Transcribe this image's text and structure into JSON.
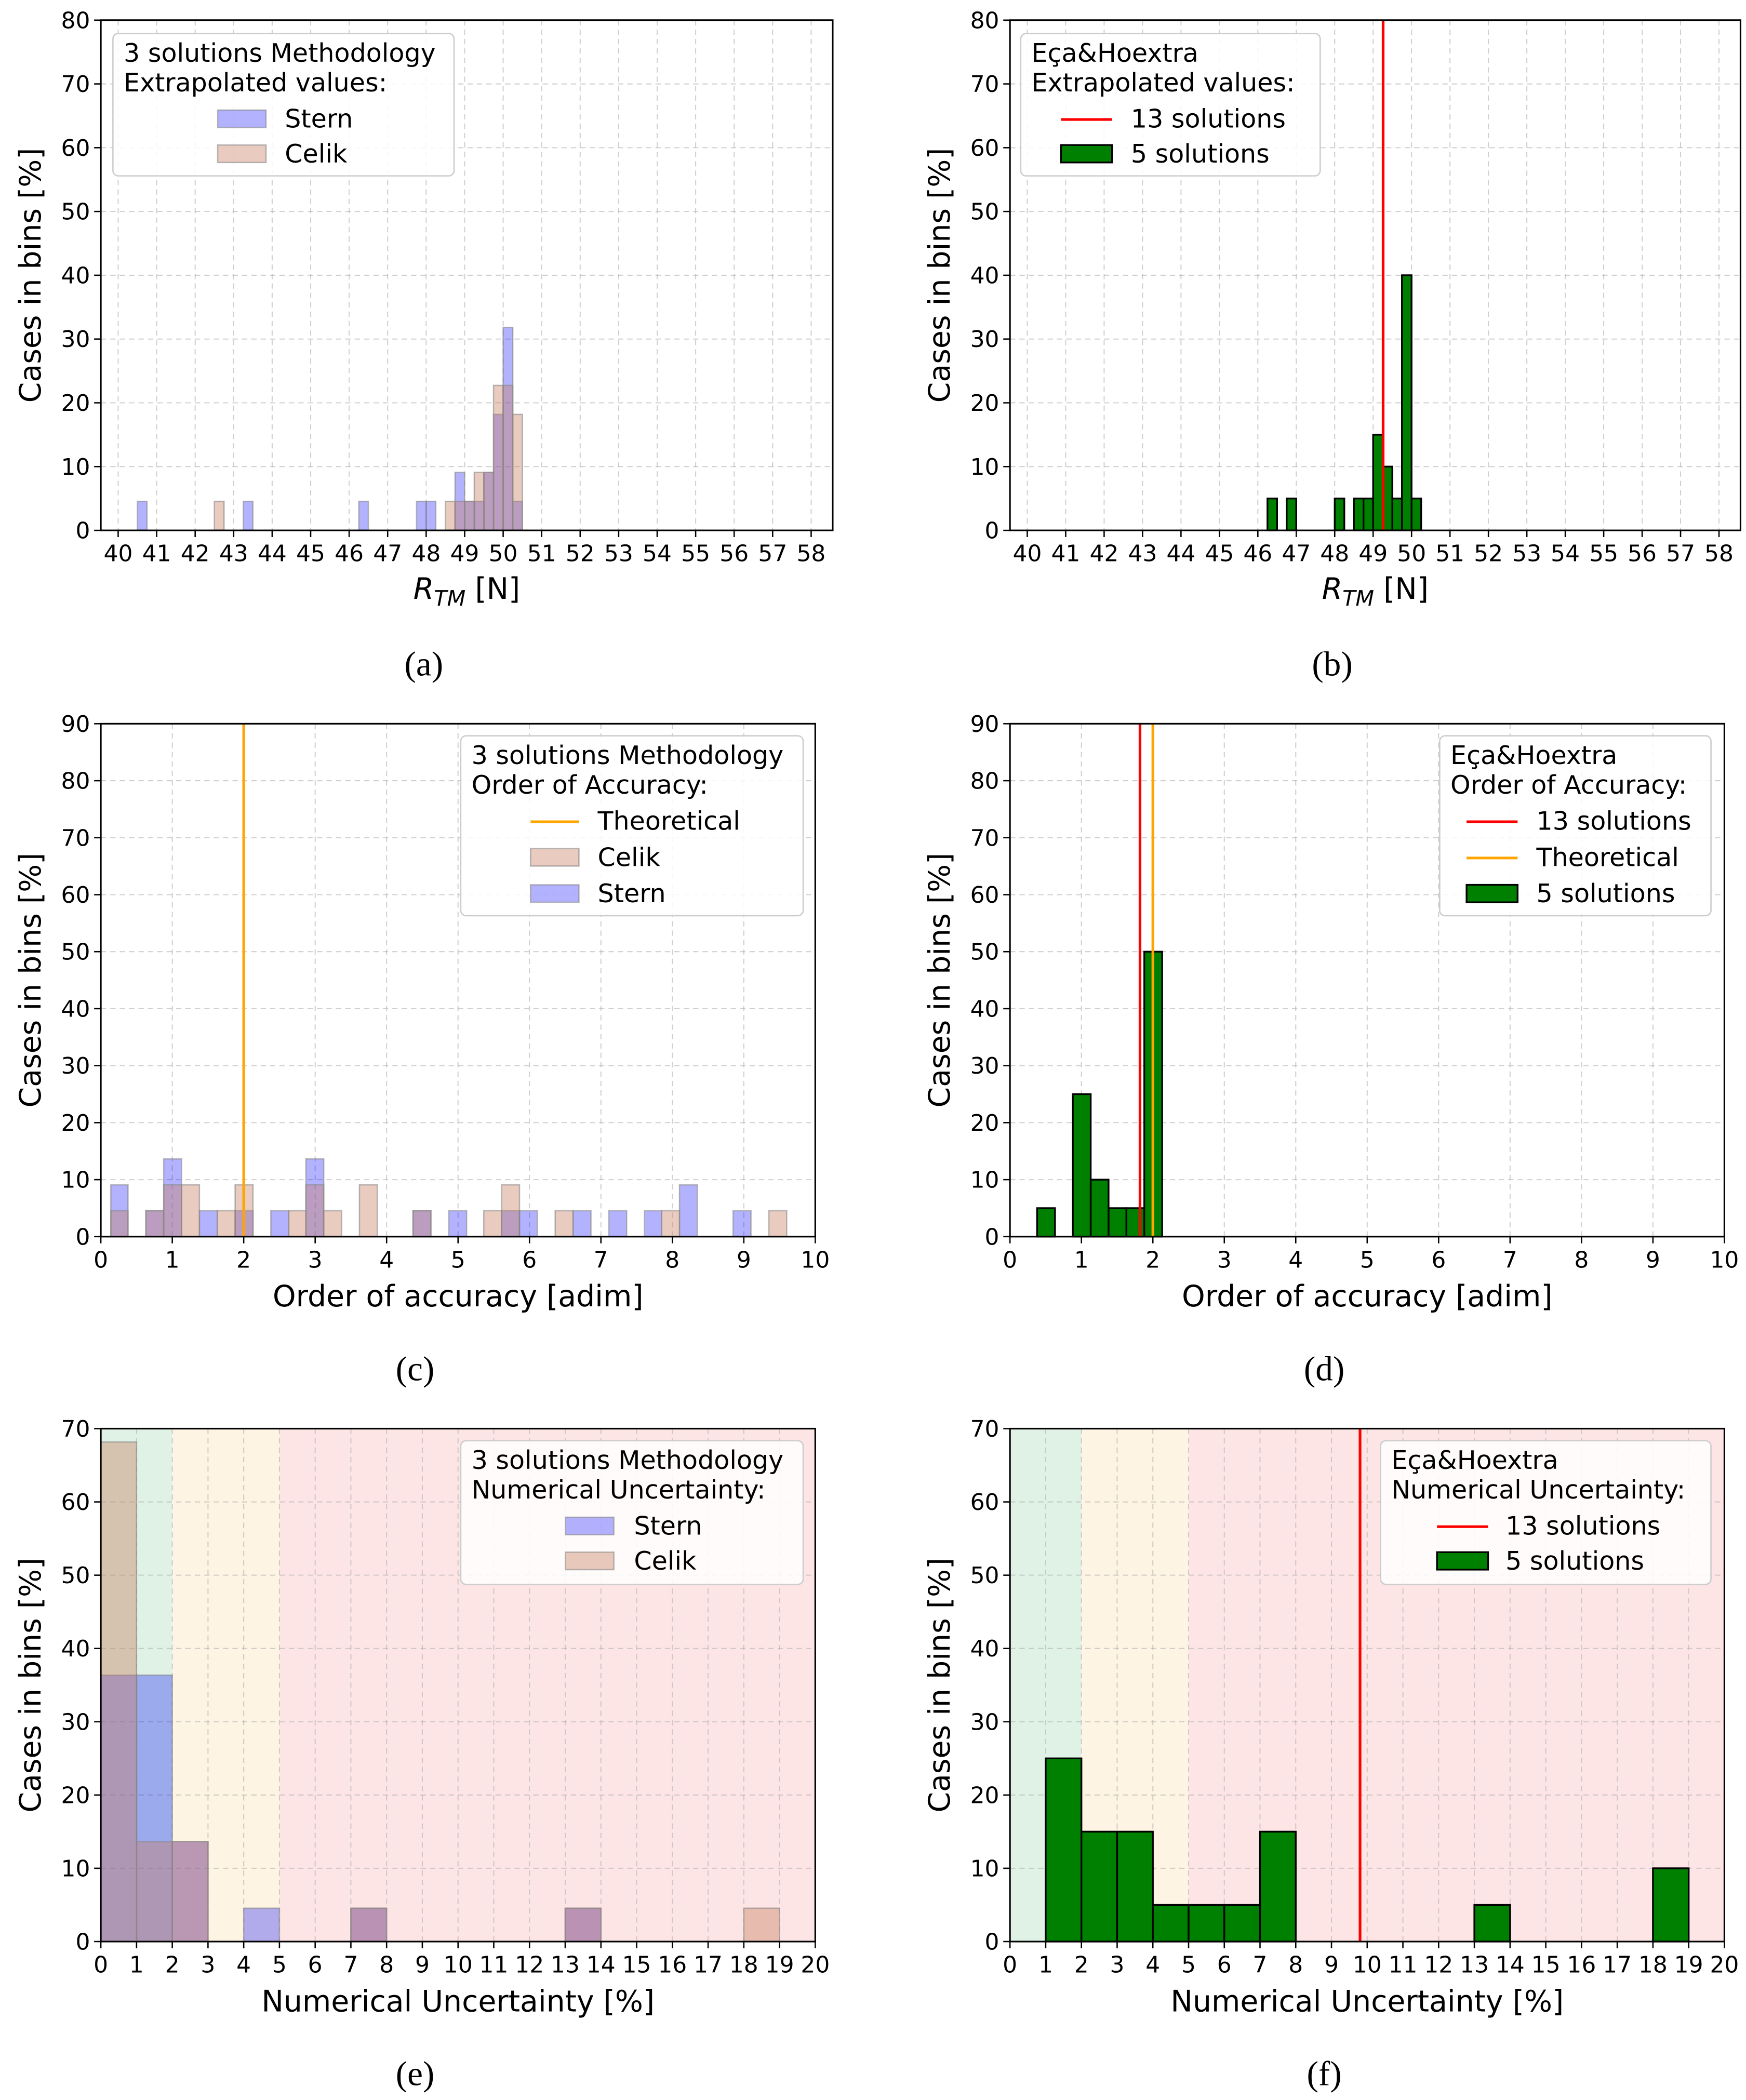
{
  "colors": {
    "stern": "#0000ff",
    "celik": "#c87e60",
    "five_solutions": "#008000",
    "thirteen_solutions": "#ff0000",
    "theoretical": "#ffa500",
    "band_green": "#dff2e5",
    "band_yellow": "#fef4e3",
    "band_red": "#fee5e5"
  },
  "chart_data": [
    {
      "id": "a",
      "type": "bar",
      "panel_label": "(a)",
      "ylabel": "Cases in bins [%]",
      "xlabel": {
        "base": "R",
        "sub": "TM",
        "unit": " [N]"
      },
      "xlim": [
        39.55,
        58.56
      ],
      "ylim": [
        0,
        80
      ],
      "xticks": [
        "40",
        "41",
        "42",
        "43",
        "44",
        "45",
        "46",
        "47",
        "48",
        "49",
        "50",
        "51",
        "52",
        "53",
        "54",
        "55",
        "56",
        "57",
        "58"
      ],
      "xtick_values": [
        40,
        41,
        42,
        43,
        44,
        45,
        46,
        47,
        48,
        49,
        50,
        51,
        52,
        53,
        54,
        55,
        56,
        57,
        58
      ],
      "yticks": [
        "0",
        "10",
        "20",
        "30",
        "40",
        "50",
        "60",
        "70",
        "80"
      ],
      "ytick_values": [
        0,
        10,
        20,
        30,
        40,
        50,
        60,
        70,
        80
      ],
      "grid": true,
      "legend": {
        "title": [
          "3 solutions Methodology",
          "Extrapolated values:"
        ],
        "placement": "top-left",
        "items": [
          {
            "label": "Stern",
            "kind": "patch",
            "color_key": "stern"
          },
          {
            "label": "Celik",
            "kind": "patch",
            "color_key": "celik"
          }
        ]
      },
      "series": [
        {
          "name": "Stern",
          "color_key": "stern",
          "bins": [
            [
              40.5,
              40.75,
              4.55
            ],
            [
              43.25,
              43.5,
              4.55
            ],
            [
              46.25,
              46.5,
              4.55
            ],
            [
              47.75,
              48.0,
              4.55
            ],
            [
              48.0,
              48.25,
              4.55
            ],
            [
              48.75,
              49.0,
              9.09
            ],
            [
              49.0,
              49.25,
              4.55
            ],
            [
              49.25,
              49.5,
              4.55
            ],
            [
              49.5,
              49.75,
              9.09
            ],
            [
              49.75,
              50.0,
              18.18
            ],
            [
              50.0,
              50.25,
              31.82
            ],
            [
              50.25,
              50.5,
              4.55
            ]
          ]
        },
        {
          "name": "Celik",
          "color_key": "celik",
          "bins": [
            [
              42.5,
              42.75,
              4.55
            ],
            [
              48.5,
              48.75,
              4.55
            ],
            [
              48.75,
              49.0,
              4.55
            ],
            [
              49.0,
              49.25,
              4.55
            ],
            [
              49.25,
              49.5,
              9.09
            ],
            [
              49.5,
              49.75,
              9.09
            ],
            [
              49.75,
              50.0,
              22.73
            ],
            [
              50.0,
              50.25,
              22.73
            ],
            [
              50.25,
              50.5,
              18.18
            ]
          ]
        }
      ],
      "vlines": []
    },
    {
      "id": "b",
      "type": "bar",
      "panel_label": "(b)",
      "ylabel": "Cases in bins [%]",
      "xlabel": {
        "base": "R",
        "sub": "TM",
        "unit": " [N]"
      },
      "xlim": [
        39.55,
        58.56
      ],
      "ylim": [
        0,
        80
      ],
      "xticks": [
        "40",
        "41",
        "42",
        "43",
        "44",
        "45",
        "46",
        "47",
        "48",
        "49",
        "50",
        "51",
        "52",
        "53",
        "54",
        "55",
        "56",
        "57",
        "58"
      ],
      "xtick_values": [
        40,
        41,
        42,
        43,
        44,
        45,
        46,
        47,
        48,
        49,
        50,
        51,
        52,
        53,
        54,
        55,
        56,
        57,
        58
      ],
      "yticks": [
        "0",
        "10",
        "20",
        "30",
        "40",
        "50",
        "60",
        "70",
        "80"
      ],
      "ytick_values": [
        0,
        10,
        20,
        30,
        40,
        50,
        60,
        70,
        80
      ],
      "grid": true,
      "legend": {
        "title": [
          "Eça&Hoextra",
          "Extrapolated values:"
        ],
        "placement": "top-left",
        "items": [
          {
            "label": "13 solutions",
            "kind": "line",
            "color_key": "thirteen_solutions"
          },
          {
            "label": "5 solutions",
            "kind": "patch",
            "color_key": "five_solutions"
          }
        ]
      },
      "series": [
        {
          "name": "5 solutions",
          "color_key": "five_solutions",
          "bins": [
            [
              46.25,
              46.5,
              5
            ],
            [
              46.75,
              47.0,
              5
            ],
            [
              48.0,
              48.25,
              5
            ],
            [
              48.5,
              48.75,
              5
            ],
            [
              48.75,
              49.0,
              5
            ],
            [
              49.0,
              49.25,
              15
            ],
            [
              49.25,
              49.5,
              10
            ],
            [
              49.5,
              49.75,
              5
            ],
            [
              49.75,
              50.0,
              40
            ],
            [
              50.0,
              50.25,
              5
            ]
          ]
        }
      ],
      "vlines": [
        {
          "name": "13 solutions",
          "x": 49.26,
          "color_key": "thirteen_solutions"
        }
      ]
    },
    {
      "id": "c",
      "type": "bar",
      "panel_label": "(c)",
      "ylabel": "Cases in bins [%]",
      "xlabel": {
        "base": "Order of accuracy [adim]"
      },
      "xlim": [
        0,
        10
      ],
      "ylim": [
        0,
        90
      ],
      "xticks": [
        "0",
        "1",
        "2",
        "3",
        "4",
        "5",
        "6",
        "7",
        "8",
        "9",
        "10"
      ],
      "xtick_values": [
        0,
        1,
        2,
        3,
        4,
        5,
        6,
        7,
        8,
        9,
        10
      ],
      "yticks": [
        "0",
        "10",
        "20",
        "30",
        "40",
        "50",
        "60",
        "70",
        "80",
        "90"
      ],
      "ytick_values": [
        0,
        10,
        20,
        30,
        40,
        50,
        60,
        70,
        80,
        90
      ],
      "grid": true,
      "legend": {
        "title": [
          "3 solutions Methodology",
          "Order of Accuracy:"
        ],
        "placement": "top-right",
        "items": [
          {
            "label": "Theoretical",
            "kind": "line",
            "color_key": "theoretical"
          },
          {
            "label": "Celik",
            "kind": "patch",
            "color_key": "celik"
          },
          {
            "label": "Stern",
            "kind": "patch",
            "color_key": "stern"
          }
        ]
      },
      "series": [
        {
          "name": "Stern",
          "color_key": "stern",
          "bins": [
            [
              0.14,
              0.38,
              9.09
            ],
            [
              0.63,
              0.88,
              4.55
            ],
            [
              0.88,
              1.13,
              13.64
            ],
            [
              1.38,
              1.63,
              4.55
            ],
            [
              1.88,
              2.13,
              4.55
            ],
            [
              2.38,
              2.63,
              4.55
            ],
            [
              2.87,
              3.12,
              13.64
            ],
            [
              4.37,
              4.62,
              4.55
            ],
            [
              4.87,
              5.12,
              4.55
            ],
            [
              5.61,
              5.86,
              4.55
            ],
            [
              5.86,
              6.11,
              4.55
            ],
            [
              6.61,
              6.86,
              4.55
            ],
            [
              7.11,
              7.36,
              4.55
            ],
            [
              7.61,
              7.85,
              4.55
            ],
            [
              8.1,
              8.35,
              9.09
            ],
            [
              8.85,
              9.1,
              4.55
            ]
          ]
        },
        {
          "name": "Celik",
          "color_key": "celik",
          "bins": [
            [
              0.14,
              0.38,
              4.55
            ],
            [
              0.63,
              0.88,
              4.55
            ],
            [
              0.88,
              1.13,
              9.09
            ],
            [
              1.13,
              1.38,
              9.09
            ],
            [
              1.63,
              1.88,
              4.55
            ],
            [
              1.88,
              2.13,
              9.09
            ],
            [
              2.63,
              2.87,
              4.55
            ],
            [
              2.87,
              3.12,
              9.09
            ],
            [
              3.12,
              3.37,
              4.55
            ],
            [
              3.62,
              3.87,
              9.09
            ],
            [
              4.37,
              4.62,
              4.55
            ],
            [
              5.36,
              5.61,
              4.55
            ],
            [
              5.61,
              5.86,
              9.09
            ],
            [
              6.36,
              6.61,
              4.55
            ],
            [
              7.85,
              8.1,
              4.55
            ],
            [
              9.35,
              9.6,
              4.55
            ]
          ]
        }
      ],
      "vlines": [
        {
          "name": "Theoretical",
          "x": 2.0,
          "color_key": "theoretical"
        }
      ]
    },
    {
      "id": "d",
      "type": "bar",
      "panel_label": "(d)",
      "ylabel": "Cases in bins [%]",
      "xlabel": {
        "base": "Order of accuracy [adim]"
      },
      "xlim": [
        0,
        10
      ],
      "ylim": [
        0,
        90
      ],
      "xticks": [
        "0",
        "1",
        "2",
        "3",
        "4",
        "5",
        "6",
        "7",
        "8",
        "9",
        "10"
      ],
      "xtick_values": [
        0,
        1,
        2,
        3,
        4,
        5,
        6,
        7,
        8,
        9,
        10
      ],
      "yticks": [
        "0",
        "10",
        "20",
        "30",
        "40",
        "50",
        "60",
        "70",
        "80",
        "90"
      ],
      "ytick_values": [
        0,
        10,
        20,
        30,
        40,
        50,
        60,
        70,
        80,
        90
      ],
      "grid": true,
      "legend": {
        "title": [
          "Eça&Hoextra",
          "Order of Accuracy:"
        ],
        "placement": "top-right",
        "items": [
          {
            "label": "13 solutions",
            "kind": "line",
            "color_key": "thirteen_solutions"
          },
          {
            "label": "Theoretical",
            "kind": "line",
            "color_key": "theoretical"
          },
          {
            "label": "5 solutions",
            "kind": "patch",
            "color_key": "five_solutions"
          }
        ]
      },
      "series": [
        {
          "name": "5 solutions",
          "color_key": "five_solutions",
          "bins": [
            [
              0.38,
              0.63,
              5
            ],
            [
              0.88,
              1.13,
              25
            ],
            [
              1.13,
              1.38,
              10
            ],
            [
              1.38,
              1.63,
              5
            ],
            [
              1.63,
              1.88,
              5
            ],
            [
              1.88,
              2.13,
              50
            ]
          ]
        }
      ],
      "vlines": [
        {
          "name": "13 solutions",
          "x": 1.82,
          "color_key": "thirteen_solutions"
        },
        {
          "name": "Theoretical",
          "x": 2.0,
          "color_key": "theoretical"
        }
      ]
    },
    {
      "id": "e",
      "type": "bar",
      "panel_label": "(e)",
      "ylabel": "Cases in bins [%]",
      "xlabel": {
        "base": "Numerical Uncertainty [%]"
      },
      "xlim": [
        0,
        20
      ],
      "ylim": [
        0,
        70
      ],
      "xticks": [
        "0",
        "1",
        "2",
        "3",
        "4",
        "5",
        "6",
        "7",
        "8",
        "9",
        "10",
        "11",
        "12",
        "13",
        "14",
        "15",
        "16",
        "17",
        "18",
        "19",
        "20"
      ],
      "xtick_values": [
        0,
        1,
        2,
        3,
        4,
        5,
        6,
        7,
        8,
        9,
        10,
        11,
        12,
        13,
        14,
        15,
        16,
        17,
        18,
        19,
        20
      ],
      "yticks": [
        "0",
        "10",
        "20",
        "30",
        "40",
        "50",
        "60",
        "70"
      ],
      "ytick_values": [
        0,
        10,
        20,
        30,
        40,
        50,
        60,
        70
      ],
      "grid": true,
      "bands": [
        {
          "from": 0,
          "to": 2,
          "color_key": "band_green"
        },
        {
          "from": 2,
          "to": 5,
          "color_key": "band_yellow"
        },
        {
          "from": 5,
          "to": 20,
          "color_key": "band_red"
        }
      ],
      "legend": {
        "title": [
          "3 solutions Methodology",
          "Numerical Uncertainty:"
        ],
        "placement": "top-right",
        "items": [
          {
            "label": "Stern",
            "kind": "patch",
            "color_key": "stern"
          },
          {
            "label": "Celik",
            "kind": "patch",
            "color_key": "celik"
          }
        ]
      },
      "series": [
        {
          "name": "Stern",
          "color_key": "stern",
          "bins": [
            [
              0,
              1,
              36.36
            ],
            [
              1,
              2,
              36.36
            ],
            [
              2,
              3,
              13.64
            ],
            [
              4,
              5,
              4.55
            ],
            [
              7,
              8,
              4.55
            ],
            [
              13,
              14,
              4.55
            ]
          ]
        },
        {
          "name": "Celik",
          "color_key": "celik",
          "bins": [
            [
              0,
              1,
              68.18
            ],
            [
              1,
              2,
              13.64
            ],
            [
              2,
              3,
              13.64
            ],
            [
              7,
              8,
              4.55
            ],
            [
              13,
              14,
              4.55
            ],
            [
              18,
              19,
              4.55
            ]
          ]
        }
      ],
      "vlines": []
    },
    {
      "id": "f",
      "type": "bar",
      "panel_label": "(f)",
      "ylabel": "Cases in bins [%]",
      "xlabel": {
        "base": "Numerical Uncertainty [%]"
      },
      "xlim": [
        0,
        20
      ],
      "ylim": [
        0,
        70
      ],
      "xticks": [
        "0",
        "1",
        "2",
        "3",
        "4",
        "5",
        "6",
        "7",
        "8",
        "9",
        "10",
        "11",
        "12",
        "13",
        "14",
        "15",
        "16",
        "17",
        "18",
        "19",
        "20"
      ],
      "xtick_values": [
        0,
        1,
        2,
        3,
        4,
        5,
        6,
        7,
        8,
        9,
        10,
        11,
        12,
        13,
        14,
        15,
        16,
        17,
        18,
        19,
        20
      ],
      "yticks": [
        "0",
        "10",
        "20",
        "30",
        "40",
        "50",
        "60",
        "70"
      ],
      "ytick_values": [
        0,
        10,
        20,
        30,
        40,
        50,
        60,
        70
      ],
      "grid": true,
      "bands": [
        {
          "from": 0,
          "to": 2,
          "color_key": "band_green"
        },
        {
          "from": 2,
          "to": 5,
          "color_key": "band_yellow"
        },
        {
          "from": 5,
          "to": 20,
          "color_key": "band_red"
        }
      ],
      "legend": {
        "title": [
          "Eça&Hoextra",
          "Numerical Uncertainty:"
        ],
        "placement": "top-right",
        "items": [
          {
            "label": "13 solutions",
            "kind": "line",
            "color_key": "thirteen_solutions"
          },
          {
            "label": "5 solutions",
            "kind": "patch",
            "color_key": "five_solutions"
          }
        ]
      },
      "series": [
        {
          "name": "5 solutions",
          "color_key": "five_solutions",
          "bins": [
            [
              1,
              2,
              25
            ],
            [
              2,
              3,
              15
            ],
            [
              3,
              4,
              15
            ],
            [
              4,
              5,
              5
            ],
            [
              5,
              6,
              5
            ],
            [
              6,
              7,
              5
            ],
            [
              7,
              8,
              15
            ],
            [
              13,
              14,
              5
            ],
            [
              18,
              19,
              10
            ]
          ]
        }
      ],
      "vlines": [
        {
          "name": "13 solutions",
          "x": 9.8,
          "color_key": "thirteen_solutions"
        }
      ]
    }
  ]
}
